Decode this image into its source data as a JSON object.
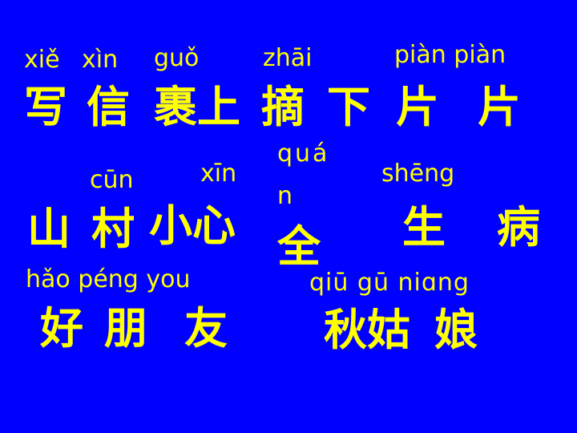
{
  "row1": {
    "pinyin": {
      "xie": "xiě",
      "xin": "xìn",
      "guo": "guǒ",
      "zhai": "zhāi",
      "pianpian": "piàn piàn"
    },
    "hanzi": {
      "xie": "写",
      "xin": "信",
      "guoshang": "裹上",
      "zhai": "摘",
      "xia": "下",
      "pian1": "片",
      "pian2": "片"
    }
  },
  "row2": {
    "pinyin": {
      "cun": "cūn",
      "xin": "xīn",
      "quan_top": "quá",
      "quan_bottom": "n",
      "sheng": "shēng"
    },
    "hanzi": {
      "shan": "山",
      "cun": "村",
      "xiaoxin": "小心",
      "quan": "全",
      "sheng": "生",
      "bing": "病"
    }
  },
  "row3": {
    "pinyin": {
      "haopengyou": "hǎo péng you",
      "qiuguniang": "qiū gū niɑng"
    },
    "hanzi": {
      "hao": "好",
      "peng": "朋",
      "you": "友",
      "qiugu": "秋姑",
      "niang": "娘"
    }
  },
  "colors": {
    "background": "#0000ff",
    "text": "#ffff00"
  }
}
